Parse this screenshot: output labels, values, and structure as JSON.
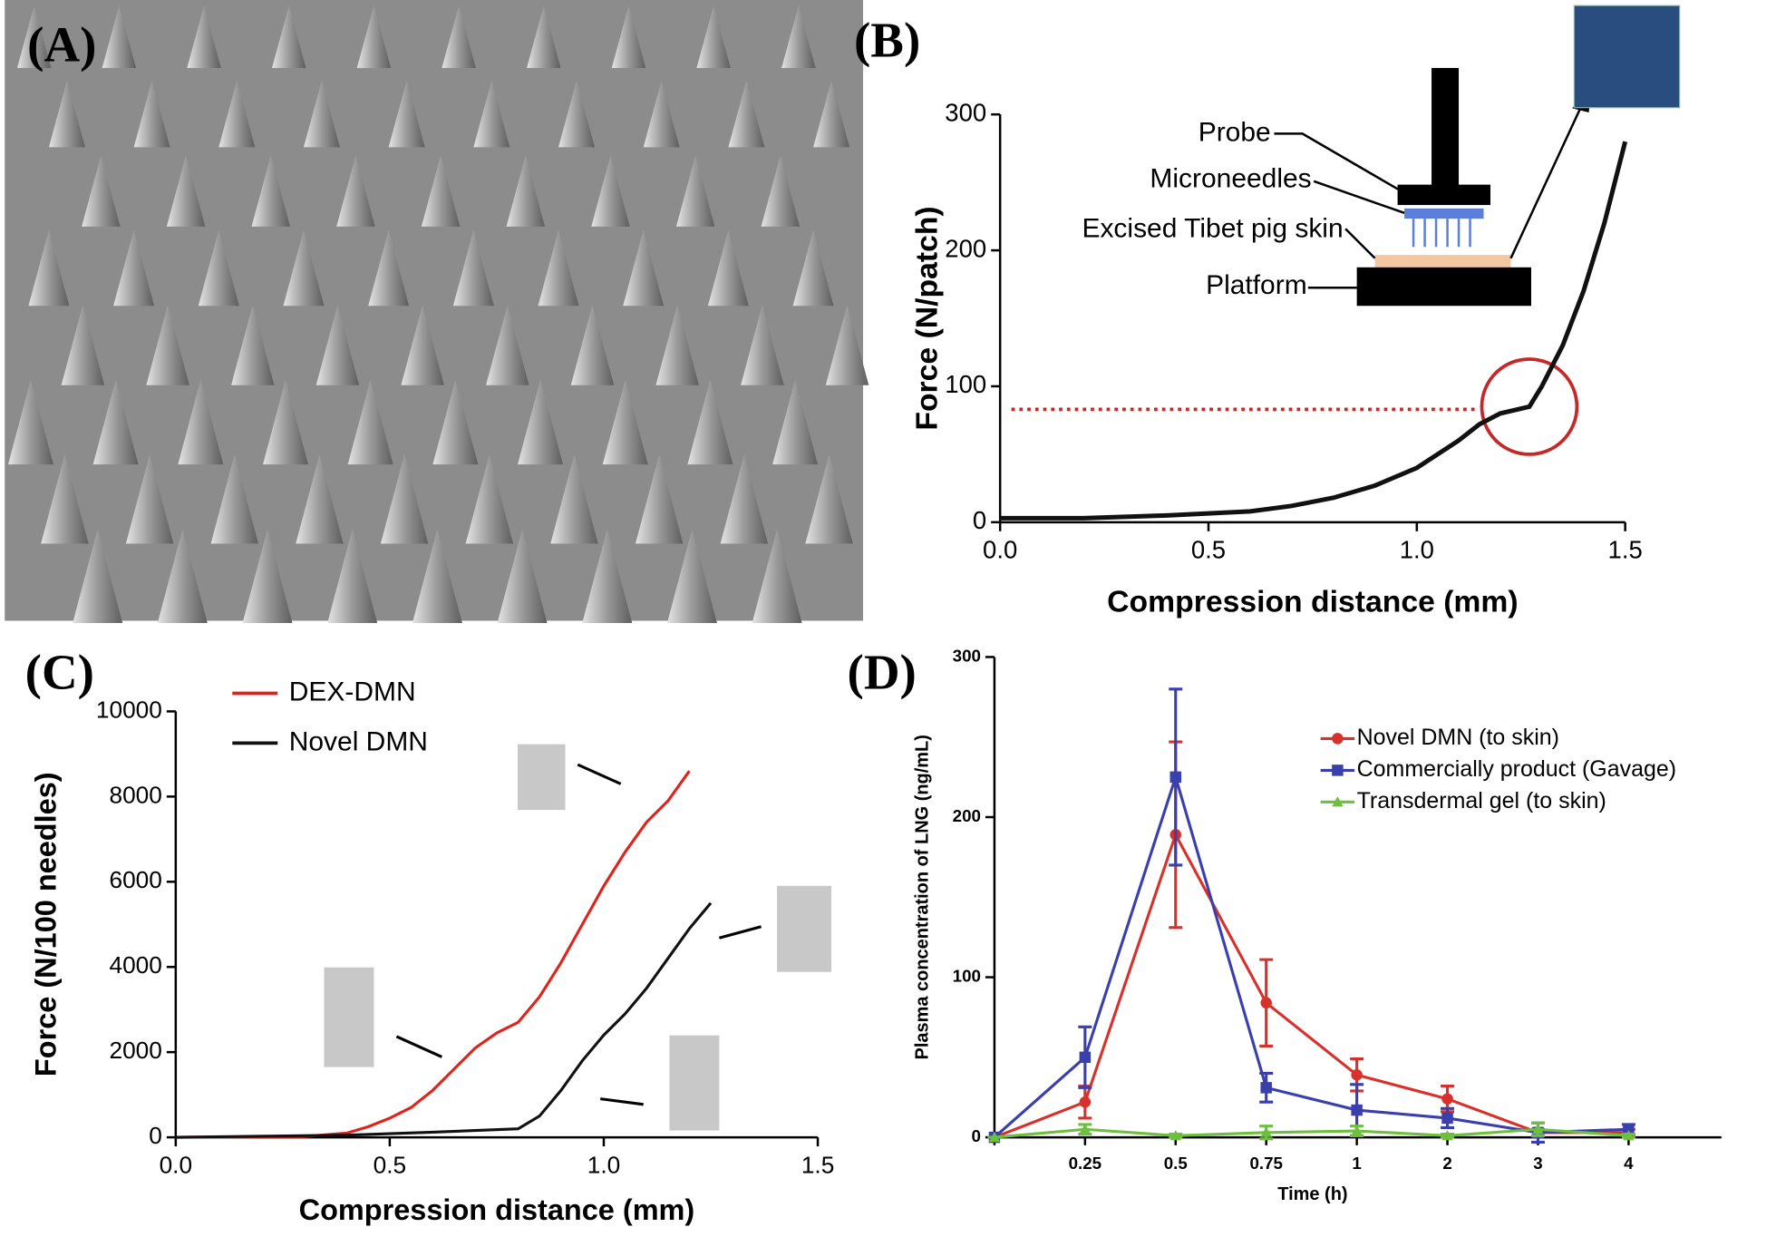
{
  "panel_labels": [
    "(A)",
    "(B)",
    "(C)",
    "(D)"
  ],
  "chart_data": [
    {
      "type": "line",
      "x_label": "Compression distance (mm)",
      "y_label": "Force (N/patch)",
      "xlim": [
        0,
        1.5
      ],
      "xticks": [
        {
          "value": 0,
          "label": "0.0"
        },
        0.5,
        {
          "value": 1,
          "label": "1.0"
        },
        1.5
      ],
      "ylim": [
        0,
        300
      ],
      "yticks": [
        0,
        100,
        200,
        300
      ],
      "series": [
        {
          "color": "#111111",
          "x": [
            0,
            0.2,
            0.4,
            0.6,
            0.7,
            0.8,
            0.9,
            1.0,
            1.1,
            1.15,
            1.2,
            1.27,
            1.3,
            1.35,
            1.4,
            1.45,
            1.5
          ],
          "values": [
            3,
            3,
            5,
            8,
            12,
            18,
            27,
            40,
            60,
            72,
            80,
            85,
            100,
            130,
            170,
            220,
            280
          ]
        }
      ],
      "reference_line": 83,
      "highlight": {
        "x": 1.27,
        "y": 85
      },
      "annotations": [
        "Probe",
        "Microneedles",
        "Excised Tibet pig skin",
        "Platform"
      ]
    },
    {
      "type": "line",
      "x_label": "Compression distance (mm)",
      "y_label": "Force (N/100 needles)",
      "xlim": [
        0,
        1.5
      ],
      "xticks": [
        {
          "value": 0,
          "label": "0.0"
        },
        0.5,
        {
          "value": 1,
          "label": "1.0"
        },
        1.5
      ],
      "ylim": [
        0,
        10000
      ],
      "yticks": [
        0,
        2000,
        4000,
        6000,
        8000,
        10000
      ],
      "series": [
        {
          "name": "DEX-DMN",
          "color": "#e0241b",
          "x": [
            0,
            0.3,
            0.4,
            0.45,
            0.5,
            0.55,
            0.6,
            0.65,
            0.7,
            0.75,
            0.8,
            0.85,
            0.9,
            0.95,
            1.0,
            1.05,
            1.1,
            1.15,
            1.2
          ],
          "values": [
            0,
            20,
            100,
            250,
            450,
            700,
            1100,
            1600,
            2100,
            2450,
            2700,
            3300,
            4100,
            5000,
            5900,
            6700,
            7400,
            7900,
            8600
          ]
        },
        {
          "name": "Novel DMN",
          "color": "#111111",
          "x": [
            0,
            0.4,
            0.6,
            0.8,
            0.85,
            0.9,
            0.95,
            1.0,
            1.05,
            1.1,
            1.15,
            1.2,
            1.25
          ],
          "values": [
            0,
            50,
            120,
            200,
            500,
            1100,
            1800,
            2400,
            2900,
            3500,
            4200,
            4900,
            5500
          ]
        }
      ]
    },
    {
      "type": "line",
      "x_label": "Time (h)",
      "y_label": "Plasma concentration of LNG (ng/mL)",
      "categories": [
        null,
        "0.25",
        "0.5",
        "0.75",
        "1",
        "2",
        "3",
        "4"
      ],
      "ylim": [
        0,
        300
      ],
      "yticks": [
        0,
        100,
        200,
        300
      ],
      "series": [
        {
          "name": "Novel DMN (to skin)",
          "color": "#d8302a",
          "marker": "circle",
          "values": [
            0,
            22,
            189,
            84,
            39,
            24,
            3,
            3
          ],
          "errors": [
            0,
            10,
            58,
            27,
            10,
            8,
            2,
            2
          ]
        },
        {
          "name": "Commercially product (Gavage)",
          "color": "#3a3fae",
          "marker": "square",
          "values": [
            0,
            50,
            225,
            31,
            17,
            12,
            3,
            5
          ],
          "errors": [
            0,
            19,
            55,
            9,
            16,
            6,
            6,
            3
          ]
        },
        {
          "name": "Transdermal gel (to skin)",
          "color": "#6fbf3f",
          "marker": "triangle",
          "values": [
            0,
            5,
            1,
            3,
            4,
            1,
            5,
            1
          ],
          "errors": [
            0,
            3,
            1,
            4,
            3,
            1,
            4,
            1
          ]
        }
      ]
    }
  ]
}
